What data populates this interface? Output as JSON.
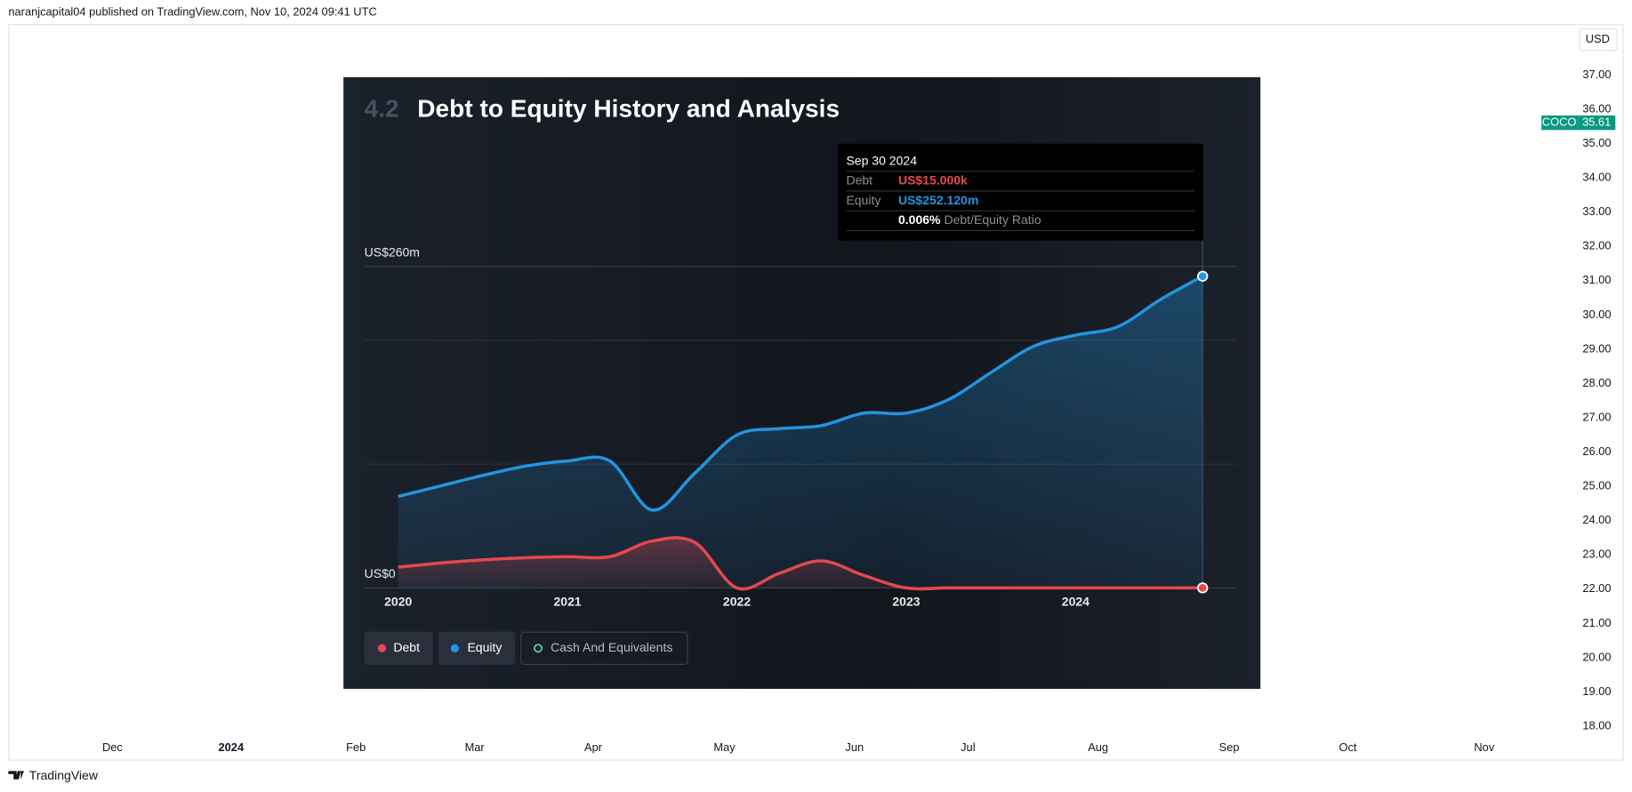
{
  "header": {
    "text": "naranjcapital04 published on TradingView.com, Nov 10, 2024 09:41 UTC"
  },
  "currency_button": "USD",
  "symbol_label": {
    "name": "COCO",
    "price": {
      "value": 35.61,
      "label": "35.61"
    }
  },
  "price_axis": {
    "ticks": [
      {
        "value": 37,
        "label": "37.00"
      },
      {
        "value": 36,
        "label": "36.00"
      },
      {
        "value": 35,
        "label": "35.00"
      },
      {
        "value": 34,
        "label": "34.00"
      },
      {
        "value": 33,
        "label": "33.00"
      },
      {
        "value": 32,
        "label": "32.00"
      },
      {
        "value": 31,
        "label": "31.00"
      },
      {
        "value": 30,
        "label": "30.00"
      },
      {
        "value": 29,
        "label": "29.00"
      },
      {
        "value": 28,
        "label": "28.00"
      },
      {
        "value": 27,
        "label": "27.00"
      },
      {
        "value": 26,
        "label": "26.00"
      },
      {
        "value": 25,
        "label": "25.00"
      },
      {
        "value": 24,
        "label": "24.00"
      },
      {
        "value": 23,
        "label": "23.00"
      },
      {
        "value": 22,
        "label": "22.00"
      },
      {
        "value": 21,
        "label": "21.00"
      },
      {
        "value": 20,
        "label": "20.00"
      },
      {
        "value": 19,
        "label": "19.00"
      },
      {
        "value": 18,
        "label": "18.00"
      }
    ]
  },
  "time_axis": {
    "labels": [
      "Dec",
      "2024",
      "Feb",
      "Mar",
      "Apr",
      "May",
      "Jun",
      "Jul",
      "Aug",
      "Sep",
      "Oct",
      "Nov"
    ]
  },
  "footer": {
    "brand": "TradingView"
  },
  "chart_data": {
    "type": "area",
    "section_number": "4.2",
    "title": "Debt to Equity History and Analysis",
    "x": [
      2020.0,
      2020.25,
      2020.5,
      2020.75,
      2021.0,
      2021.25,
      2021.5,
      2021.75,
      2022.0,
      2022.25,
      2022.5,
      2022.75,
      2023.0,
      2023.25,
      2023.5,
      2023.75,
      2024.0,
      2024.25,
      2024.5,
      2024.75
    ],
    "xlim": [
      2019.8,
      2024.95
    ],
    "xticks": [
      2020,
      2021,
      2022,
      2023,
      2024
    ],
    "ylim": [
      0,
      260
    ],
    "yticks": [
      {
        "value": 0,
        "label": "US$0"
      },
      {
        "value": 260,
        "label": "US$260m"
      }
    ],
    "series": [
      {
        "name": "Debt",
        "color": "#e5484d",
        "values": [
          16.8,
          20.2,
          22.7,
          24.4,
          25.3,
          25.3,
          37.9,
          37,
          0,
          11.8,
          21.9,
          10.1,
          0,
          0,
          0,
          0,
          0,
          0,
          0,
          0.015
        ]
      },
      {
        "name": "Equity",
        "color": "#2394df",
        "values": [
          74,
          82.5,
          91,
          98.5,
          102.7,
          102.7,
          63,
          92.6,
          123.7,
          128.8,
          131.3,
          141.4,
          141.4,
          152.4,
          174.2,
          195.3,
          204.5,
          211.3,
          233.2,
          252.12
        ]
      },
      {
        "name": "Cash And Equivalents",
        "color": "#58d3b3",
        "values": [
          null,
          null,
          null,
          null,
          null,
          null,
          null,
          null,
          null,
          null,
          null,
          null,
          null,
          null,
          null,
          null,
          null,
          null,
          null,
          null
        ]
      }
    ],
    "tooltip": {
      "date": "Sep 30 2024",
      "debt_label": "Debt",
      "debt_value": "US$15.000k",
      "equity_label": "Equity",
      "equity_value": "US$252.120m",
      "ratio_value": "0.006%",
      "ratio_label": "Debt/Equity Ratio"
    }
  }
}
